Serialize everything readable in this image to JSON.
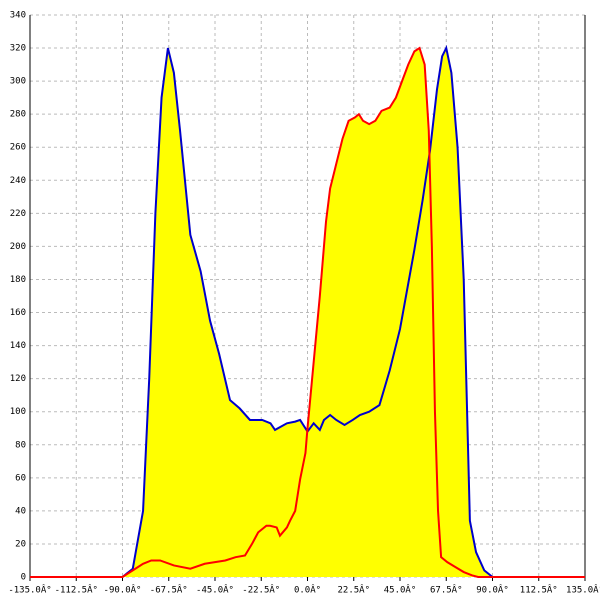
{
  "chart_data": {
    "type": "area-line",
    "xlim": [
      -135,
      135
    ],
    "ylim": [
      0,
      340
    ],
    "xticks": [
      {
        "value": -135,
        "label": "-135.0Â°"
      },
      {
        "value": -112.5,
        "label": "-112.5Â°"
      },
      {
        "value": -90,
        "label": "-90.0Â°"
      },
      {
        "value": -67.5,
        "label": "-67.5Â°"
      },
      {
        "value": -45,
        "label": "-45.0Â°"
      },
      {
        "value": -22.5,
        "label": "-22.5Â°"
      },
      {
        "value": 0,
        "label": "0.0Â°"
      },
      {
        "value": 22.5,
        "label": "22.5Â°"
      },
      {
        "value": 45,
        "label": "45.0Â°"
      },
      {
        "value": 67.5,
        "label": "67.5Â°"
      },
      {
        "value": 90,
        "label": "90.0Â°"
      },
      {
        "value": 112.5,
        "label": "112.5Â°"
      },
      {
        "value": 135,
        "label": "135.0Â°"
      }
    ],
    "yticks": [
      0,
      20,
      40,
      60,
      80,
      100,
      120,
      140,
      160,
      180,
      200,
      220,
      240,
      260,
      280,
      300,
      320,
      340
    ],
    "grid": true,
    "fill": "#ffff00",
    "series": [
      {
        "color": "#0000cc",
        "x": [
          -90,
          -85,
          -80,
          -77,
          -74,
          -71,
          -67.9,
          -65,
          -62,
          -57,
          -52,
          -47.4,
          -43,
          -37.7,
          -33,
          -28,
          -22,
          -18,
          -15.8,
          -10,
          -6,
          -3.6,
          0,
          3,
          6,
          8,
          11,
          14,
          18,
          22,
          25.5,
          30,
          35,
          40,
          45,
          52,
          56,
          59.6,
          63,
          65.5,
          67.5,
          70,
          73,
          76,
          79,
          82,
          86,
          90
        ],
        "values": [
          0,
          5,
          40,
          120,
          220,
          290,
          320,
          305,
          270,
          207,
          185,
          155,
          135,
          107,
          102,
          95,
          95,
          93,
          89,
          93,
          94,
          95,
          88,
          93,
          89,
          95,
          98,
          95,
          92,
          95,
          98,
          100,
          104,
          125,
          150,
          198,
          228,
          258,
          295,
          315,
          320,
          305,
          260,
          180,
          34,
          15,
          4,
          0
        ]
      },
      {
        "color": "#ff0000",
        "x": [
          -135,
          -90,
          -85,
          -80,
          -76,
          -71.7,
          -65,
          -57,
          -50,
          -45,
          -40,
          -35,
          -30.4,
          -27,
          -24,
          -20,
          -18.2,
          -15,
          -13.4,
          -10,
          -8.5,
          -6,
          -3.6,
          -1,
          0,
          3,
          6,
          9,
          11,
          14,
          17,
          20,
          23,
          25,
          27,
          30,
          33,
          36,
          40,
          43,
          46,
          49,
          52,
          54.5,
          57,
          59,
          60.5,
          62,
          63.5,
          65,
          68,
          72,
          76,
          80,
          83,
          135
        ],
        "values": [
          0,
          0,
          4,
          8,
          10,
          10,
          7,
          5,
          8,
          9,
          10,
          12,
          13,
          20,
          27,
          31,
          31,
          30,
          25,
          30,
          34,
          40,
          59,
          75,
          90,
          130,
          170,
          215,
          235,
          250,
          265,
          276,
          278,
          280,
          276,
          274,
          276,
          282,
          284,
          290,
          300,
          310,
          318,
          320,
          310,
          270,
          200,
          100,
          40,
          12,
          9,
          6,
          3,
          1,
          0,
          0
        ]
      }
    ]
  }
}
